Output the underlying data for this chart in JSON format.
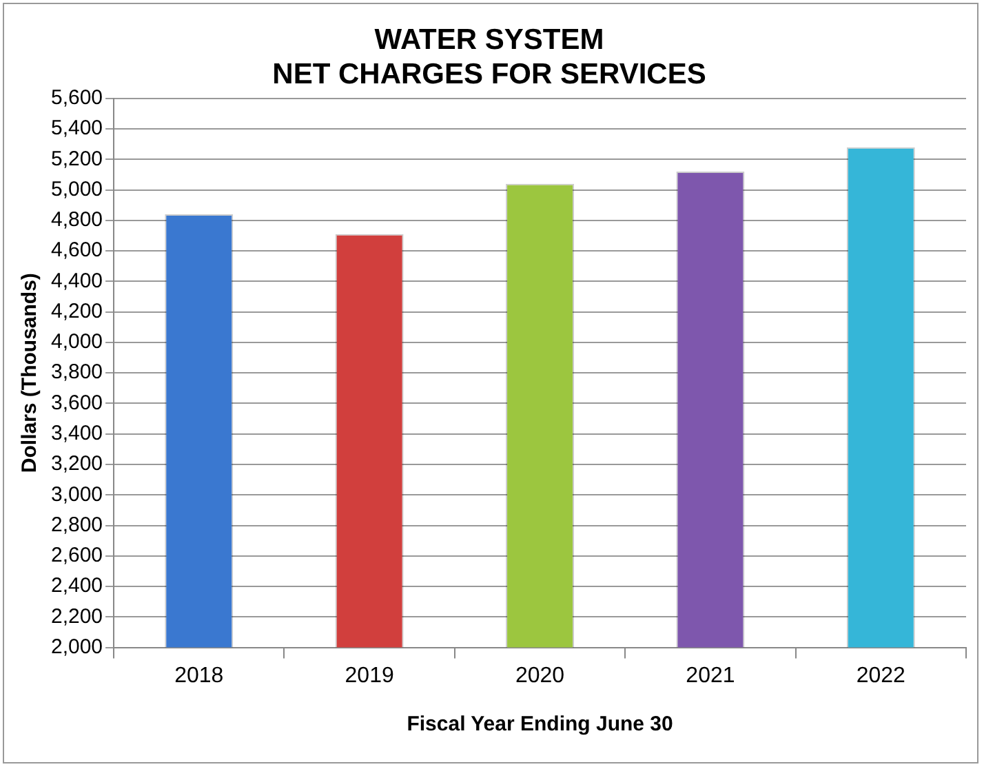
{
  "chart_data": {
    "type": "bar",
    "title": [
      "WATER SYSTEM",
      "NET CHARGES FOR SERVICES"
    ],
    "xlabel": "Fiscal Year Ending June 30",
    "ylabel": "Dollars (Thousands)",
    "categories": [
      "2018",
      "2019",
      "2020",
      "2021",
      "2022"
    ],
    "values": [
      4840,
      4710,
      5040,
      5120,
      5280
    ],
    "colors": [
      "#3a78d0",
      "#d13f3d",
      "#9cc63f",
      "#7e57ad",
      "#35b6d8"
    ],
    "ylim": [
      2000,
      5600
    ],
    "yticks": [
      {
        "value": 2000,
        "label": "2,000"
      },
      {
        "value": 2200,
        "label": "2,200"
      },
      {
        "value": 2400,
        "label": "2,400"
      },
      {
        "value": 2600,
        "label": "2,600"
      },
      {
        "value": 2800,
        "label": "2,800"
      },
      {
        "value": 3000,
        "label": "3,000"
      },
      {
        "value": 3200,
        "label": "3,200"
      },
      {
        "value": 3400,
        "label": "3,400"
      },
      {
        "value": 3600,
        "label": "3,600"
      },
      {
        "value": 3800,
        "label": "3,800"
      },
      {
        "value": 4000,
        "label": "4,000"
      },
      {
        "value": 4200,
        "label": "4,200"
      },
      {
        "value": 4400,
        "label": "4,400"
      },
      {
        "value": 4600,
        "label": "4,600"
      },
      {
        "value": 4800,
        "label": "4,800"
      },
      {
        "value": 5000,
        "label": "5,000"
      },
      {
        "value": 5200,
        "label": "5,200"
      },
      {
        "value": 5400,
        "label": "5,400"
      },
      {
        "value": 5600,
        "label": "5,600"
      }
    ],
    "grid": "y"
  }
}
